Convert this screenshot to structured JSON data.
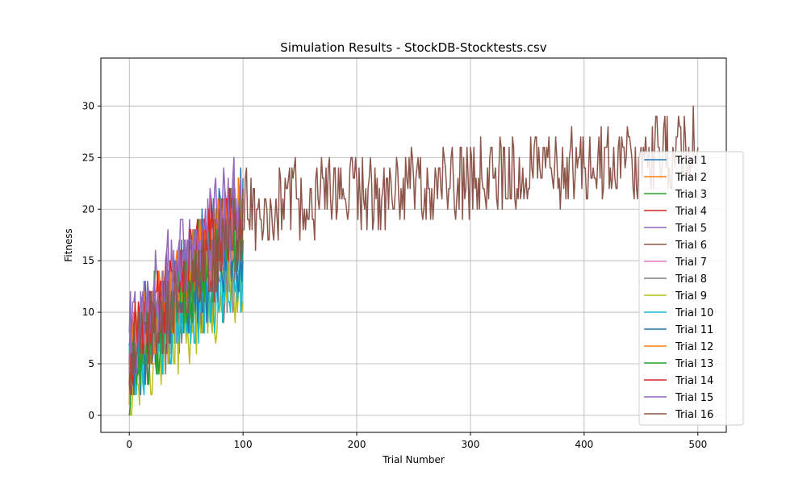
{
  "chart_data": {
    "type": "line",
    "title": "Simulation Results - StockDB-Stocktests.csv",
    "xlabel": "Trial Number",
    "ylabel": "Fitness",
    "xlim": [
      -25,
      525
    ],
    "ylim": [
      -1.65,
      34.65
    ],
    "xticks": [
      0,
      100,
      200,
      300,
      400,
      500
    ],
    "yticks": [
      0,
      5,
      10,
      15,
      20,
      25,
      30
    ],
    "grid": true,
    "legend_position": "right",
    "series": [
      {
        "name": "Trial 1",
        "color": "#1f77b4",
        "length": 100,
        "start": 7,
        "end": 20,
        "noise": 4
      },
      {
        "name": "Trial 2",
        "color": "#ff7f0e",
        "length": 100,
        "start": 4,
        "end": 20,
        "noise": 4
      },
      {
        "name": "Trial 3",
        "color": "#2ca02c",
        "length": 100,
        "start": 5,
        "end": 19,
        "noise": 5
      },
      {
        "name": "Trial 4",
        "color": "#d62728",
        "length": 100,
        "start": 5,
        "end": 18,
        "noise": 4
      },
      {
        "name": "Trial 5",
        "color": "#9467bd",
        "length": 100,
        "start": 8,
        "end": 22,
        "noise": 4
      },
      {
        "name": "Trial 6",
        "color": "#8c564b",
        "length": 500,
        "start": 5,
        "end": 26,
        "noise": 4
      },
      {
        "name": "Trial 7",
        "color": "#e377c2",
        "length": 100,
        "start": 5,
        "end": 18,
        "noise": 4
      },
      {
        "name": "Trial 8",
        "color": "#7f7f7f",
        "length": 100,
        "start": 4,
        "end": 14,
        "noise": 4
      },
      {
        "name": "Trial 9",
        "color": "#bcbd22",
        "length": 100,
        "start": 3,
        "end": 13,
        "noise": 4
      },
      {
        "name": "Trial 10",
        "color": "#17becf",
        "length": 100,
        "start": 4,
        "end": 14,
        "noise": 4
      },
      {
        "name": "Trial 11",
        "color": "#1f77b4",
        "length": 100,
        "start": 4,
        "end": 16,
        "noise": 4
      },
      {
        "name": "Trial 12",
        "color": "#ff7f0e",
        "length": 100,
        "start": 5,
        "end": 20,
        "noise": 4
      },
      {
        "name": "Trial 13",
        "color": "#2ca02c",
        "length": 100,
        "start": 3,
        "end": 18,
        "noise": 4
      },
      {
        "name": "Trial 14",
        "color": "#d62728",
        "length": 100,
        "start": 6,
        "end": 20,
        "noise": 4
      },
      {
        "name": "Trial 15",
        "color": "#9467bd",
        "length": 100,
        "start": 6,
        "end": 21,
        "noise": 4
      },
      {
        "name": "Trial 16",
        "color": "#8c564b",
        "length": 100,
        "start": 5,
        "end": 18,
        "noise": 4
      }
    ]
  }
}
